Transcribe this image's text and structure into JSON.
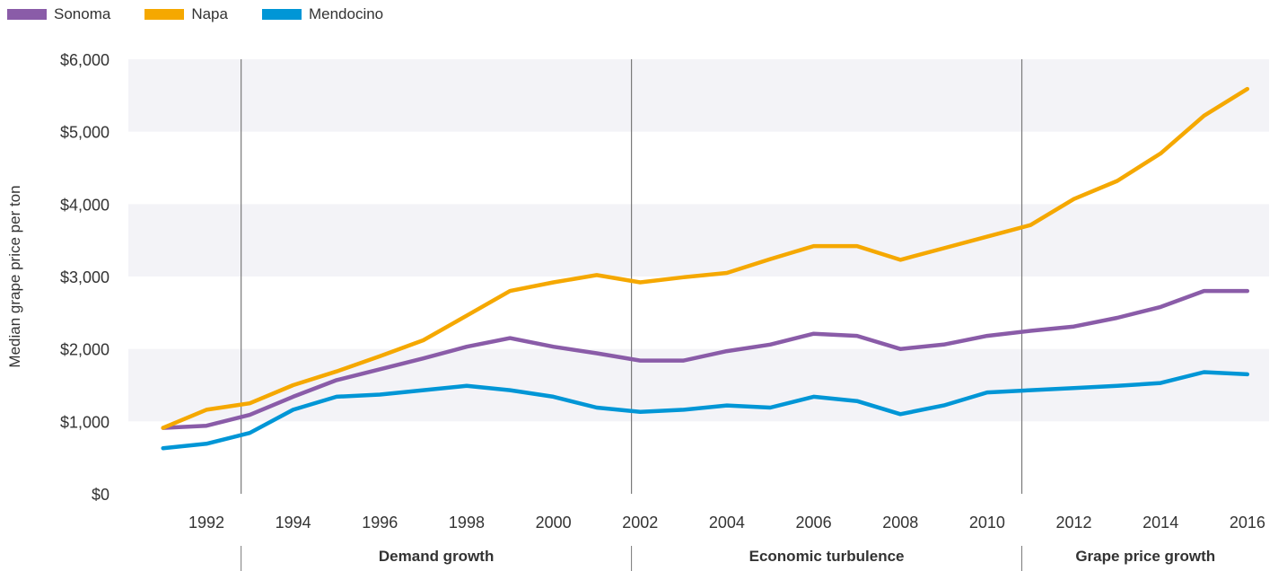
{
  "chart_data": {
    "type": "line",
    "title": "",
    "xlabel": "",
    "ylabel": "Median grape price per ton",
    "ylim": [
      0,
      6000
    ],
    "yticks": [
      0,
      1000,
      2000,
      3000,
      4000,
      5000,
      6000
    ],
    "ytick_labels": [
      "$0",
      "$1,000",
      "$2,000",
      "$3,000",
      "$4,000",
      "$5,000",
      "$6,000"
    ],
    "xlim": [
      1990.2,
      2016.5
    ],
    "xticks": [
      1992,
      1994,
      1996,
      1998,
      2000,
      2002,
      2004,
      2006,
      2008,
      2010,
      2012,
      2014,
      2016
    ],
    "x": [
      1991,
      1992,
      1993,
      1994,
      1995,
      1996,
      1997,
      1998,
      1999,
      2000,
      2001,
      2002,
      2003,
      2004,
      2005,
      2006,
      2007,
      2008,
      2009,
      2010,
      2011,
      2012,
      2013,
      2014,
      2015,
      2016
    ],
    "series": [
      {
        "name": "Sonoma",
        "color": "#8a5ca8",
        "values": [
          910,
          940,
          1090,
          1340,
          1570,
          1720,
          1870,
          2030,
          2150,
          2030,
          1940,
          1840,
          1840,
          1970,
          2060,
          2210,
          2180,
          2000,
          2060,
          2180,
          2250,
          2310,
          2430,
          2580,
          2800,
          2800
        ]
      },
      {
        "name": "Napa",
        "color": "#f5a800",
        "values": [
          910,
          1160,
          1250,
          1500,
          1690,
          1900,
          2120,
          2460,
          2800,
          2920,
          3020,
          2920,
          2990,
          3050,
          3240,
          3420,
          3420,
          3230,
          3390,
          3550,
          3710,
          4070,
          4320,
          4700,
          5220,
          5590
        ]
      },
      {
        "name": "Mendocino",
        "color": "#0096d6",
        "values": [
          630,
          690,
          840,
          1160,
          1340,
          1370,
          1430,
          1490,
          1430,
          1340,
          1190,
          1130,
          1160,
          1220,
          1190,
          1340,
          1280,
          1100,
          1220,
          1400,
          1430,
          1460,
          1490,
          1530,
          1680,
          1650
        ]
      }
    ],
    "periods": [
      {
        "label": "Demand growth",
        "start": 1992.8,
        "end": 2001.8
      },
      {
        "label": "Economic turbulence",
        "start": 2001.8,
        "end": 2010.8
      },
      {
        "label": "Grape price growth",
        "start": 2010.8,
        "end": 2016.5
      }
    ],
    "grid": "alternating horizontal bands",
    "legend": "top-left",
    "band_color": "#f3f3f7",
    "divider_color": "#7a7a7a"
  }
}
